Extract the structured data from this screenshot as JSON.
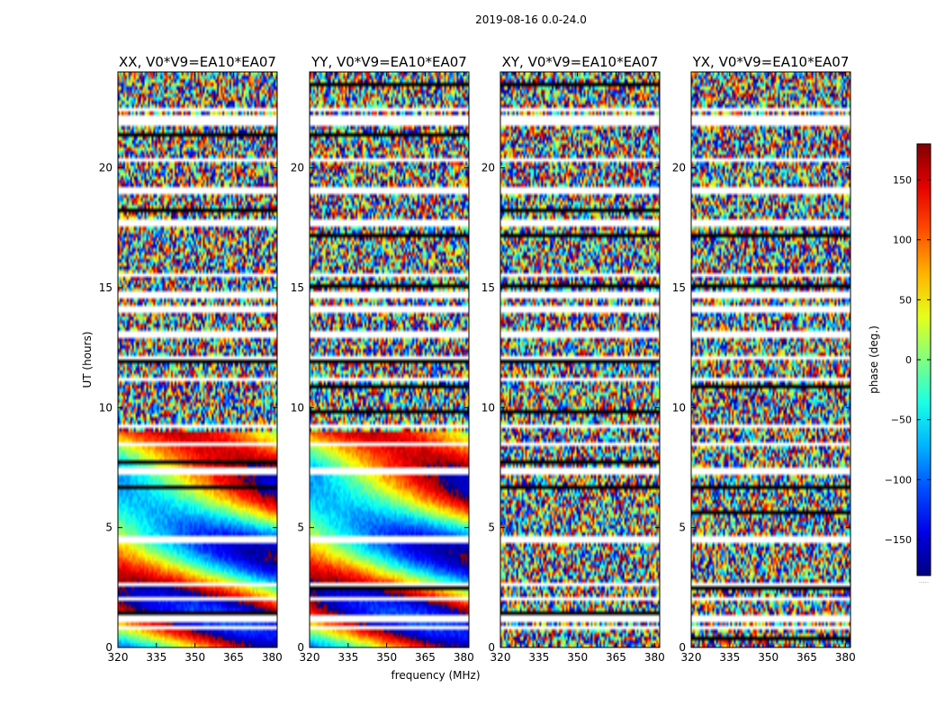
{
  "figure": {
    "suptitle": "2019-08-16 0.0-24.0",
    "xlabel": "frequency (MHz)",
    "ylabel": "UT (hours)"
  },
  "chart_data": {
    "type": "heatmap",
    "x_range": [
      320,
      382
    ],
    "y_range": [
      0,
      24
    ],
    "x_ticks": [
      320,
      335,
      350,
      365,
      380
    ],
    "y_ticks": [
      0,
      5,
      10,
      15,
      20
    ],
    "x_tick_labels": [
      "320",
      "335",
      "350",
      "365",
      "380"
    ],
    "y_tick_labels": [
      "0",
      "5",
      "10",
      "15",
      "20"
    ],
    "panels": [
      {
        "title": "XX, V0*V9=EA10*EA07",
        "pattern": "parallel"
      },
      {
        "title": "YY, V0*V9=EA10*EA07",
        "pattern": "parallel"
      },
      {
        "title": "XY, V0*V9=EA10*EA07",
        "pattern": "cross"
      },
      {
        "title": "YX, V0*V9=EA10*EA07",
        "pattern": "cross"
      }
    ],
    "colorbar": {
      "label": "phase (deg.)",
      "range": [
        -180,
        180
      ],
      "ticks": [
        150,
        100,
        50,
        0,
        -50,
        -100,
        -150
      ],
      "tick_labels": [
        "150",
        "100",
        "50",
        "0",
        "−50",
        "−100",
        "−150"
      ],
      "colormap": "jet",
      "footer": "....."
    },
    "flagged_rows_hours": [
      0.85,
      1.15,
      1.25,
      2.05,
      2.6,
      4.5,
      7.35,
      8.5,
      9.2,
      11.2,
      12.05,
      13.05,
      14.1,
      14.7,
      15.55,
      17.7,
      19.05,
      20.3,
      21.9,
      22.05,
      22.4
    ]
  }
}
